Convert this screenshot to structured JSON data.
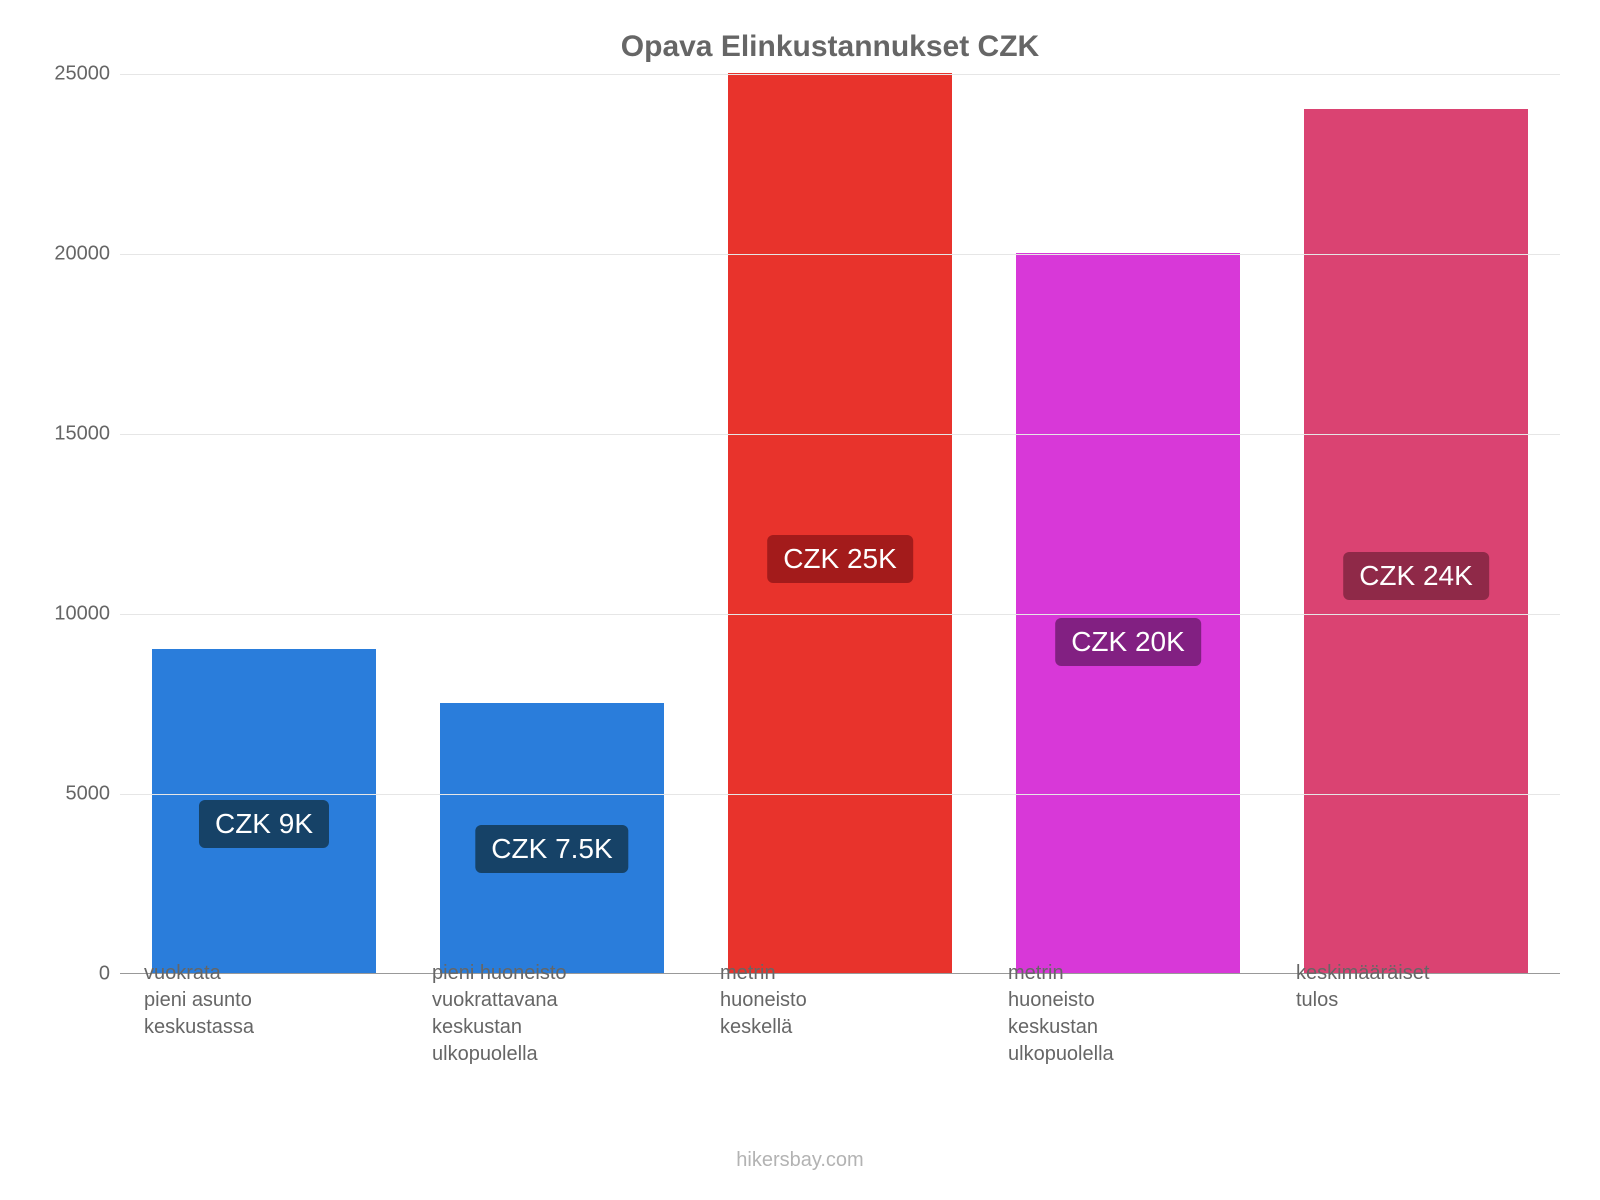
{
  "chart": {
    "type": "bar",
    "title": "Opava Elinkustannukset CZK",
    "title_color": "#666666",
    "title_fontsize": 30,
    "background_color": "#ffffff",
    "grid_color": "#e6e6e6",
    "axis_label_color": "#666666",
    "axis_fontsize": 20,
    "ymin": 0,
    "ymax": 25000,
    "ytick_step": 5000,
    "yticks": [
      0,
      5000,
      10000,
      15000,
      20000,
      25000
    ],
    "bar_width": 0.78,
    "bars": [
      {
        "category": "vuokrata\npieni asunto\nkeskustassa",
        "value": 9000,
        "color": "#2a7ddb",
        "label_text": "CZK 9K",
        "label_bg": "#164267"
      },
      {
        "category": "pieni huoneisto\nvuokrattavana\nkeskustan\nulkopuolella",
        "value": 7500,
        "color": "#2a7ddb",
        "label_text": "CZK 7.5K",
        "label_bg": "#164267"
      },
      {
        "category": "metrin\nhuoneisto\nkeskellä",
        "value": 25000,
        "color": "#e8332c",
        "label_text": "CZK 25K",
        "label_bg": "#a31b1b"
      },
      {
        "category": "metrin\nhuoneisto\nkeskustan\nulkopuolella",
        "value": 20000,
        "color": "#d838d8",
        "label_text": "CZK 20K",
        "label_bg": "#822082"
      },
      {
        "category": "keskimääräiset\ntulos",
        "value": 24000,
        "color": "#da4372",
        "label_text": "CZK 24K",
        "label_bg": "#8f2948"
      }
    ],
    "attribution": "hikersbay.com",
    "attribution_color": "#b3b3b3"
  }
}
